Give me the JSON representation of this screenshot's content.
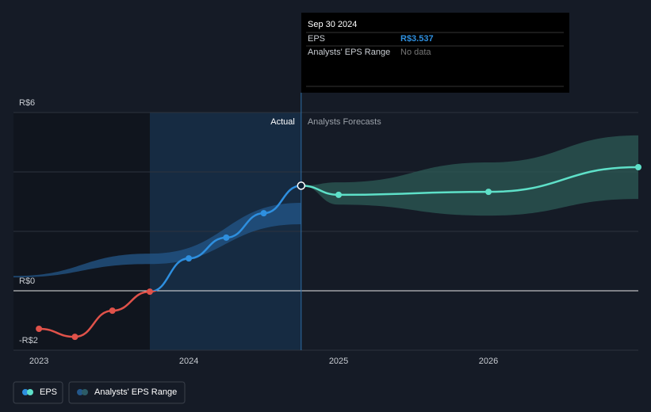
{
  "chart_data": {
    "type": "line",
    "xlim": [
      2022.83,
      2027
    ],
    "ylim": [
      -2.3,
      6.3
    ],
    "xticks": [
      2023,
      2024,
      2025,
      2026
    ],
    "yticks": [
      {
        "value": 6,
        "label": "R$6"
      },
      {
        "value": 4,
        "label": null
      },
      {
        "value": 2,
        "label": null
      },
      {
        "value": 0,
        "label": "R$0"
      },
      {
        "value": -2,
        "label": "-R$2"
      }
    ],
    "grid": true,
    "sections": {
      "actual": "Actual",
      "forecast": "Analysts Forecasts",
      "actual_start": 2023.74,
      "divider": 2024.75
    },
    "series": [
      {
        "name": "EPS",
        "color": "#2e8fdf",
        "negative_color": "#e0524a",
        "x": [
          2023.0,
          2023.24,
          2023.49,
          2023.74,
          2024.0,
          2024.25,
          2024.5,
          2024.75
        ],
        "values": [
          -1.28,
          -1.55,
          -0.67,
          -0.03,
          1.09,
          1.79,
          2.61,
          3.537
        ]
      },
      {
        "name": "Analysts' EPS Range",
        "color": "#2c5b66",
        "bands": [
          {
            "x": [
              2022.83,
              2023.74,
              2024.75
            ],
            "low": [
              0.45,
              0.9,
              2.24
            ],
            "high": [
              0.5,
              1.25,
              2.96
            ],
            "color": "#23578a"
          },
          {
            "x": [
              2024.75,
              2025.0,
              2026.0,
              2027.0
            ],
            "low": [
              3.537,
              2.9,
              2.53,
              3.09
            ],
            "high": [
              3.537,
              3.65,
              4.32,
              5.23
            ],
            "color": "#2c5b56"
          }
        ]
      }
    ],
    "forecast": {
      "color": "#5ee0c8",
      "x": [
        2024.75,
        2025.0,
        2026.0,
        2027.0
      ],
      "values": [
        3.537,
        3.23,
        3.33,
        4.16
      ]
    },
    "tooltip": {
      "date": "Sep 30 2024",
      "rows": [
        {
          "label": "EPS",
          "value": "R$3.537"
        },
        {
          "label": "Analysts' EPS Range",
          "value": "No data"
        }
      ]
    }
  }
}
